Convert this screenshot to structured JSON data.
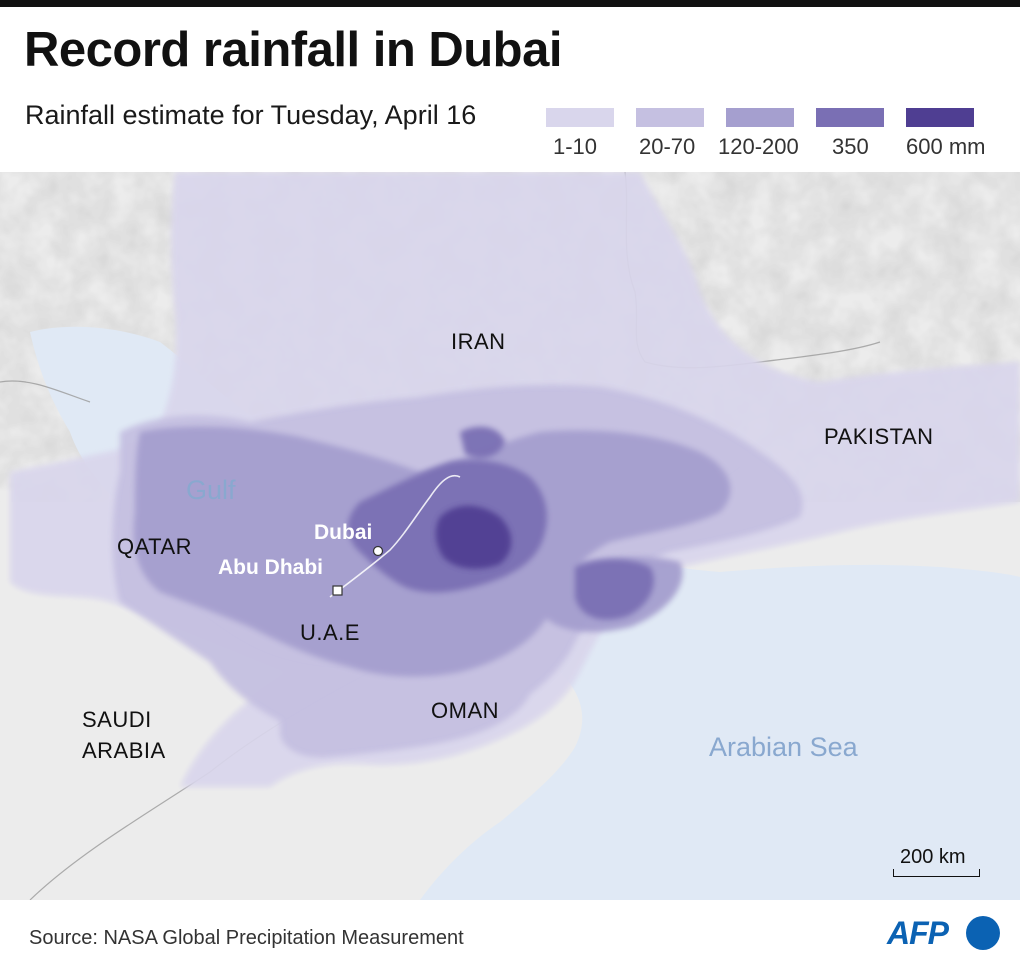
{
  "title": "Record rainfall in Dubai",
  "subtitle": "Rainfall estimate for Tuesday, April 16",
  "legend": {
    "items": [
      {
        "label": "1-10",
        "color": "#d9d6ec"
      },
      {
        "label": "20-70",
        "color": "#c5c0e1"
      },
      {
        "label": "120-200",
        "color": "#a59fcf"
      },
      {
        "label": "350",
        "color": "#7a6fb4"
      },
      {
        "label": "600 mm",
        "color": "#4f3e92"
      }
    ]
  },
  "map": {
    "countries": {
      "iran": "IRAN",
      "pakistan": "PAKISTAN",
      "qatar": "QATAR",
      "uae": "U.A.E",
      "oman": "OMAN",
      "saudi_line1": "SAUDI",
      "saudi_line2": "ARABIA"
    },
    "seas": {
      "gulf": "Gulf",
      "arabian_sea": "Arabian Sea"
    },
    "cities": {
      "dubai": "Dubai",
      "abu_dhabi": "Abu Dhabi"
    },
    "scale": "200 km",
    "colors": {
      "land": "#ececec",
      "water": "#e0e9f5"
    }
  },
  "source": "Source: NASA Global Precipitation Measurement",
  "logo": "AFP"
}
